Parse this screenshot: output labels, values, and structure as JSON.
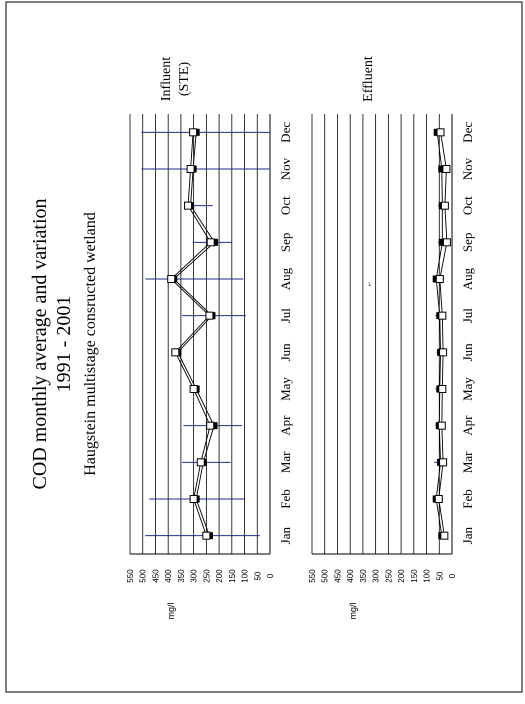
{
  "title": "COD monthly average and variation",
  "years": "1991 - 2001",
  "subtitle": "Haugstein multistage consructed wetland",
  "stray_mark": "⌐",
  "chart_data": [
    {
      "type": "line",
      "panel_label_line1": "Influent",
      "panel_label_line2": "(STE)",
      "ylabel": "mg/l",
      "ylim": [
        0,
        550
      ],
      "yticks": [
        550,
        500,
        450,
        400,
        350,
        300,
        250,
        200,
        150,
        100,
        50,
        0
      ],
      "categories": [
        "Jan",
        "Feb",
        "Mar",
        "Apr",
        "May",
        "Jun",
        "Jul",
        "Aug",
        "Sep",
        "Oct",
        "Nov",
        "Dec"
      ],
      "grid": true,
      "series": [
        {
          "marker": "filled-square",
          "values": [
            238,
            290,
            262,
            220,
            290,
            362,
            228,
            378,
            218,
            312,
            302,
            290
          ]
        },
        {
          "marker": "open-square",
          "values": [
            250,
            300,
            272,
            235,
            300,
            372,
            238,
            388,
            233,
            322,
            312,
            302
          ]
        }
      ],
      "error_low": [
        40,
        100,
        155,
        110,
        null,
        null,
        95,
        105,
        150,
        225,
        0,
        0
      ],
      "error_high": [
        490,
        475,
        345,
        340,
        null,
        null,
        345,
        490,
        305,
        330,
        505,
        505
      ]
    },
    {
      "type": "line",
      "panel_label_line1": "Effluent",
      "panel_label_line2": "",
      "ylabel": "mg/l",
      "ylim": [
        0,
        550
      ],
      "yticks": [
        550,
        500,
        450,
        400,
        350,
        300,
        250,
        200,
        150,
        100,
        50,
        0
      ],
      "categories": [
        "Jan",
        "Feb",
        "Mar",
        "Apr",
        "May",
        "Jun",
        "Jul",
        "Aug",
        "Sep",
        "Oct",
        "Nov",
        "Dec"
      ],
      "grid": true,
      "series": [
        {
          "marker": "filled-square",
          "values": [
            40,
            62,
            45,
            50,
            48,
            45,
            48,
            62,
            38,
            38,
            40,
            58
          ]
        },
        {
          "marker": "open-square",
          "values": [
            30,
            52,
            35,
            40,
            38,
            35,
            38,
            48,
            20,
            28,
            22,
            45
          ]
        }
      ],
      "error_low": [
        20,
        35,
        25,
        30,
        30,
        30,
        30,
        30,
        25,
        25,
        20,
        35
      ],
      "error_high": [
        55,
        75,
        70,
        65,
        65,
        60,
        65,
        75,
        55,
        55,
        55,
        70
      ]
    }
  ]
}
